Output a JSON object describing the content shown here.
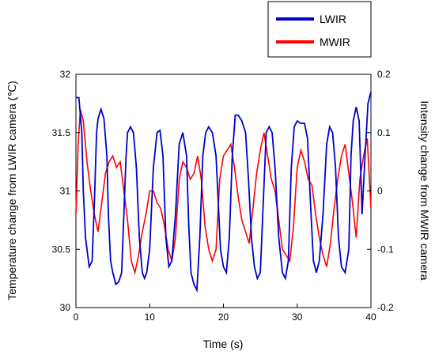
{
  "chart_data": {
    "type": "line",
    "xlabel": "Time (s)",
    "ylabel_left": "Temperature change from LWIR camera (℃)",
    "ylabel_right": "Intensity change from MWIR camera",
    "xlim": [
      0,
      40
    ],
    "ylim_left": [
      30,
      32
    ],
    "ylim_right": [
      -0.2,
      0.2
    ],
    "xticks": [
      "0",
      "10",
      "20",
      "30",
      "40"
    ],
    "yticks_left": [
      "30",
      "30.5",
      "31",
      "31.5",
      "32"
    ],
    "yticks_right": [
      "-0.2",
      "-0.1",
      "0",
      "0.1",
      "0.2"
    ],
    "grid": false,
    "legend_position": "top-right, outside plot",
    "series": [
      {
        "name": "LWIR",
        "axis": "left",
        "color": "#0000cc",
        "x": [
          0,
          0.4,
          0.8,
          1.0,
          1.3,
          1.8,
          2.2,
          2.5,
          2.8,
          3.0,
          3.4,
          3.8,
          4.2,
          4.4,
          4.7,
          5.0,
          5.4,
          5.8,
          6.2,
          6.5,
          6.8,
          7.0,
          7.4,
          7.8,
          8.2,
          8.6,
          9.0,
          9.3,
          9.6,
          10.0,
          10.5,
          11.0,
          11.4,
          11.8,
          12.2,
          12.6,
          13.0,
          13.5,
          14.0,
          14.5,
          15.0,
          15.3,
          15.6,
          16.0,
          16.4,
          16.8,
          17.2,
          17.6,
          18.0,
          18.5,
          19.0,
          19.3,
          19.6,
          20.0,
          20.4,
          20.8,
          21.2,
          21.6,
          22.0,
          22.5,
          23.0,
          23.4,
          23.8,
          24.2,
          24.6,
          25.0,
          25.4,
          25.8,
          26.2,
          26.6,
          27.0,
          27.5,
          28.0,
          28.4,
          28.8,
          29.2,
          29.6,
          30.0,
          30.5,
          31.0,
          31.4,
          31.8,
          32.2,
          32.6,
          33.0,
          33.5,
          34.0,
          34.4,
          34.8,
          35.2,
          35.6,
          36.0,
          36.5,
          37.0,
          37.3,
          37.6,
          38.0,
          38.4,
          38.8,
          39.2,
          39.6,
          40.0
        ],
        "values": [
          31.8,
          31.8,
          31.5,
          31.0,
          30.6,
          30.35,
          30.4,
          30.9,
          31.5,
          31.62,
          31.7,
          31.62,
          31.3,
          30.8,
          30.4,
          30.3,
          30.2,
          30.22,
          30.3,
          30.8,
          31.3,
          31.5,
          31.55,
          31.5,
          31.2,
          30.6,
          30.3,
          30.25,
          30.3,
          30.5,
          31.2,
          31.5,
          31.52,
          31.3,
          30.6,
          30.35,
          30.4,
          30.8,
          31.4,
          31.5,
          31.3,
          30.7,
          30.3,
          30.2,
          30.15,
          30.6,
          31.3,
          31.5,
          31.55,
          31.5,
          31.3,
          30.9,
          30.5,
          30.35,
          30.3,
          30.6,
          31.3,
          31.65,
          31.65,
          31.6,
          31.5,
          31.1,
          30.6,
          30.35,
          30.25,
          30.3,
          30.9,
          31.5,
          31.55,
          31.5,
          31.2,
          30.6,
          30.3,
          30.25,
          30.4,
          31.2,
          31.55,
          31.6,
          31.58,
          31.58,
          31.45,
          30.9,
          30.4,
          30.3,
          30.4,
          30.8,
          31.4,
          31.55,
          31.5,
          31.2,
          30.6,
          30.35,
          30.3,
          30.5,
          31.3,
          31.6,
          31.72,
          31.6,
          30.8,
          31.3,
          31.75,
          31.85
        ]
      },
      {
        "name": "MWIR",
        "axis": "right",
        "color": "#ff0000",
        "x": [
          0,
          0.3,
          0.6,
          1.0,
          1.5,
          2.0,
          2.5,
          3.0,
          3.5,
          4.0,
          4.5,
          5.0,
          5.5,
          6.0,
          6.5,
          7.0,
          7.5,
          8.0,
          8.5,
          9.0,
          9.5,
          10.0,
          10.5,
          11.0,
          11.5,
          12.0,
          12.5,
          13.0,
          13.5,
          14.0,
          14.5,
          15.0,
          15.5,
          16.0,
          16.5,
          17.0,
          17.5,
          18.0,
          18.5,
          19.0,
          19.5,
          20.0,
          20.5,
          21.0,
          21.5,
          22.0,
          22.5,
          23.0,
          23.5,
          24.0,
          24.5,
          25.0,
          25.5,
          26.0,
          26.5,
          27.0,
          27.5,
          28.0,
          28.5,
          29.0,
          29.5,
          30.0,
          30.5,
          31.0,
          31.5,
          32.0,
          32.5,
          33.0,
          33.5,
          34.0,
          34.5,
          35.0,
          35.5,
          36.0,
          36.5,
          37.0,
          37.5,
          38.0,
          38.5,
          39.0,
          39.5,
          40.0
        ],
        "values": [
          -0.04,
          0.08,
          0.14,
          0.12,
          0.05,
          0.0,
          -0.04,
          -0.07,
          -0.02,
          0.03,
          0.05,
          0.06,
          0.04,
          0.05,
          0.0,
          -0.05,
          -0.12,
          -0.14,
          -0.11,
          -0.07,
          -0.04,
          0.0,
          0.0,
          -0.02,
          -0.03,
          -0.06,
          -0.1,
          -0.12,
          -0.08,
          0.02,
          0.05,
          0.04,
          0.02,
          0.03,
          0.06,
          0.02,
          -0.06,
          -0.1,
          -0.12,
          -0.1,
          0.02,
          0.06,
          0.07,
          0.08,
          0.04,
          -0.01,
          -0.05,
          -0.07,
          -0.09,
          -0.03,
          0.03,
          0.07,
          0.1,
          0.06,
          0.02,
          0.0,
          -0.05,
          -0.1,
          -0.11,
          -0.12,
          -0.06,
          0.04,
          0.07,
          0.05,
          0.02,
          0.01,
          -0.04,
          -0.08,
          -0.11,
          -0.13,
          -0.09,
          -0.03,
          0.02,
          0.06,
          0.08,
          0.03,
          -0.02,
          -0.08,
          0.02,
          0.06,
          0.09,
          -0.03
        ]
      }
    ]
  }
}
